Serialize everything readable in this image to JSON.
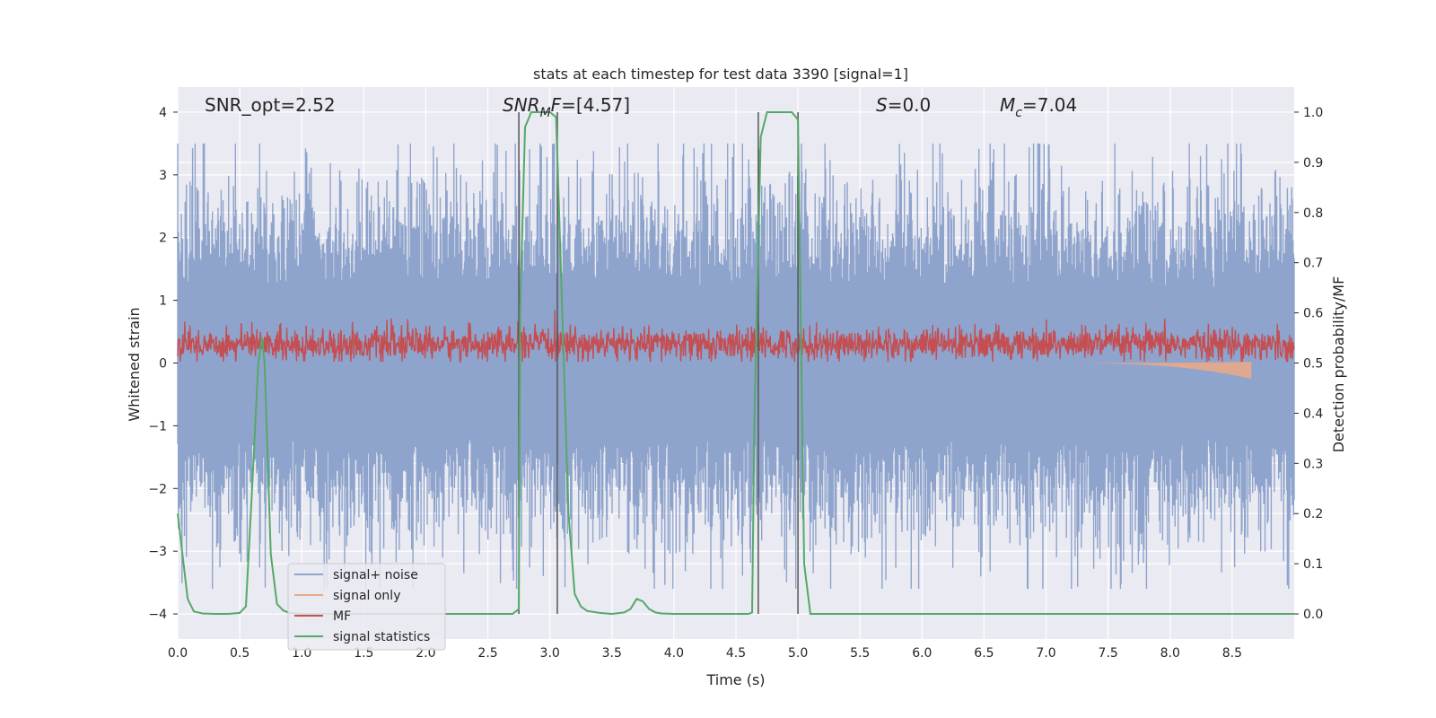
{
  "chart_data": {
    "type": "line",
    "title": "stats at each timestep for test data 3390 [signal=1]",
    "xlabel": "Time (s)",
    "ylabel_left": "Whitened strain",
    "ylabel_right": "Detection probability/MF",
    "xlim": [
      0.0,
      9.0
    ],
    "ylim_left": [
      -4.4,
      4.4
    ],
    "ylim_right": [
      -0.05,
      1.05
    ],
    "grid": true,
    "xticks": [
      "0.0",
      "0.5",
      "1.0",
      "1.5",
      "2.0",
      "2.5",
      "3.0",
      "3.5",
      "4.0",
      "4.5",
      "5.0",
      "5.5",
      "6.0",
      "6.5",
      "7.0",
      "7.5",
      "8.0",
      "8.5"
    ],
    "yticks_left": [
      "4",
      "3",
      "2",
      "1",
      "0",
      "−1",
      "−2",
      "−3",
      "−4"
    ],
    "yticks_right": [
      "1.0",
      "0.9",
      "0.8",
      "0.7",
      "0.6",
      "0.5",
      "0.4",
      "0.3",
      "0.2",
      "0.1",
      "0.0"
    ],
    "annotations": {
      "snr_opt": "SNR_opt=2.52",
      "snr_mf_italic": "SNR",
      "snr_mf_sub": "M",
      "snr_mf_italic2": "F",
      "snr_mf_value": "=[4.57]",
      "s_italic": "S",
      "s_value": "=0.0",
      "mc_italic": "M",
      "mc_sub": "c",
      "mc_value": "=7.04"
    },
    "legend_position": "lower-left",
    "series": [
      {
        "name": "signal+ noise",
        "color": "#8fa4cc",
        "description_amplitude": [
          -3.6,
          3.5
        ]
      },
      {
        "name": "signal only",
        "color": "#e8a98a"
      },
      {
        "name": "MF",
        "color": "#c44e52"
      },
      {
        "name": "signal statistics",
        "color": "#55a868"
      }
    ],
    "signal_statistics": {
      "x": [
        0.0,
        0.08,
        0.13,
        0.2,
        0.3,
        0.4,
        0.5,
        0.55,
        0.6,
        0.65,
        0.68,
        0.7,
        0.75,
        0.8,
        0.85,
        0.9,
        1.0,
        1.5,
        2.0,
        2.5,
        2.7,
        2.75,
        2.76,
        2.8,
        2.85,
        2.9,
        3.0,
        3.05,
        3.1,
        3.15,
        3.2,
        3.25,
        3.3,
        3.4,
        3.5,
        3.6,
        3.65,
        3.7,
        3.75,
        3.8,
        3.85,
        3.9,
        4.0,
        4.5,
        4.6,
        4.63,
        4.65,
        4.7,
        4.75,
        4.9,
        4.95,
        5.0,
        5.05,
        5.1,
        5.5,
        6.0,
        7.0,
        8.0,
        9.0
      ],
      "y": [
        0.2,
        0.03,
        0.005,
        0.001,
        0.0,
        0.0,
        0.002,
        0.015,
        0.25,
        0.5,
        0.55,
        0.5,
        0.12,
        0.02,
        0.007,
        0.002,
        0.0,
        0.0,
        0.0,
        0.0,
        0.0,
        0.01,
        0.6,
        0.97,
        1.0,
        1.0,
        1.0,
        0.99,
        0.6,
        0.2,
        0.04,
        0.015,
        0.006,
        0.002,
        0.0,
        0.003,
        0.01,
        0.03,
        0.025,
        0.01,
        0.003,
        0.001,
        0.0,
        0.0,
        0.0,
        0.003,
        0.4,
        0.95,
        1.0,
        1.0,
        1.0,
        0.985,
        0.1,
        0.0,
        0.0,
        0.0,
        0.0,
        0.0,
        0.0
      ]
    },
    "vertical_lines_x": [
      2.75,
      3.06,
      4.68,
      5.0
    ],
    "signal_only_chirp": {
      "start": 7.0,
      "end": 8.65,
      "max_depth": -0.25
    }
  }
}
